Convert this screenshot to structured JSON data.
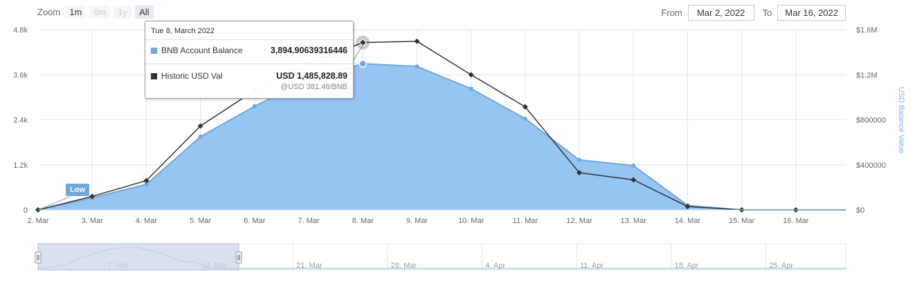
{
  "zoom": {
    "label": "Zoom",
    "buttons": [
      "1m",
      "6m",
      "1y",
      "All"
    ]
  },
  "range": {
    "from_label": "From",
    "from_value": "Mar 2, 2022",
    "to_label": "To",
    "to_value": "Mar 16, 2022"
  },
  "tooltip": {
    "date": "Tue 8, March 2022",
    "series1_name": "BNB Account Balance",
    "series1_value": "3,894.90639316446",
    "series2_name": "Historic USD Val",
    "series2_value": "USD 1,485,828.89",
    "series2_sub": "@USD 381.48/BNB"
  },
  "flag_label": "Low",
  "colors": {
    "balance_fill": "#95c5f0",
    "balance_line": "#6fa8dc",
    "usd_line": "#333333",
    "navigator_mask": "#ccd6eb"
  },
  "chart_data": {
    "type": "area",
    "x": [
      "2. Mar",
      "3. Mar",
      "4. Mar",
      "5. Mar",
      "6. Mar",
      "7. Mar",
      "8. Mar",
      "9. Mar",
      "10. Mar",
      "11. Mar",
      "12. Mar",
      "13. Mar",
      "14. Mar",
      "15. Mar",
      "16. Mar"
    ],
    "series": [
      {
        "name": "BNB Account Balance",
        "values": [
          0,
          320,
          680,
          1950,
          2760,
          3480,
          3894.9,
          3820,
          3230,
          2430,
          1330,
          1180,
          120,
          0,
          0
        ]
      },
      {
        "name": "Historic USD Val",
        "values": [
          0,
          120000,
          260000,
          745000,
          1060000,
          1300000,
          1485828.89,
          1497000,
          1200000,
          915000,
          330000,
          267000,
          30000,
          0,
          0
        ]
      }
    ],
    "yaxis_left": {
      "ticks": [
        "0",
        "1.2k",
        "2.4k",
        "3.6k",
        "4.8k"
      ],
      "ylim": [
        0,
        4800
      ]
    },
    "yaxis_right": {
      "label": "USD Balance Value",
      "ticks": [
        "$0",
        "$400000",
        "$800000",
        "$1.2M",
        "$1.6M"
      ],
      "ylim": [
        0,
        1600000
      ]
    },
    "grid": true,
    "navigator": {
      "ticks": [
        "7. Mar",
        "14. Mar",
        "21. Mar",
        "28. Mar",
        "4. Apr",
        "11. Apr",
        "18. Apr",
        "25. Apr"
      ]
    }
  }
}
